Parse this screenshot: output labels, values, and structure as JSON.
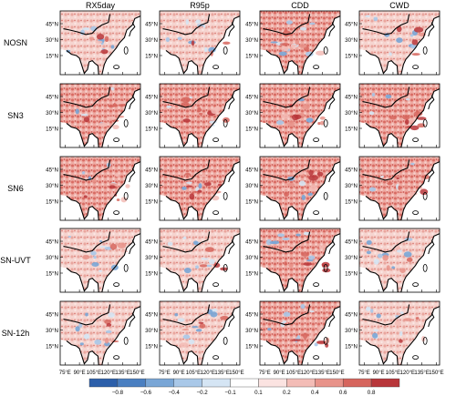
{
  "columns": [
    "RX5day",
    "R95p",
    "CDD",
    "CWD"
  ],
  "rows": [
    "NOSN",
    "SN3",
    "SN6",
    "SN-UVT",
    "SN-12h"
  ],
  "lat_ticks": [
    "45°N",
    "30°N",
    "15°N"
  ],
  "lon_ticks": [
    "75°E",
    "90°E",
    "105°E",
    "120°E",
    "135°E",
    "150°E"
  ],
  "colorbar": {
    "tick_labels": [
      "−0.8",
      "−0.6",
      "−0.4",
      "−0.2",
      "−0.1",
      "0.1",
      "0.2",
      "0.4",
      "0.6",
      "0.8"
    ],
    "colors": [
      "#2c5faa",
      "#4a7fc1",
      "#79a6d6",
      "#a9c8e8",
      "#d5e5f4",
      "#ffffff",
      "#fbe3e1",
      "#f3bcb6",
      "#e8938a",
      "#d6655d",
      "#b8363a"
    ]
  }
}
